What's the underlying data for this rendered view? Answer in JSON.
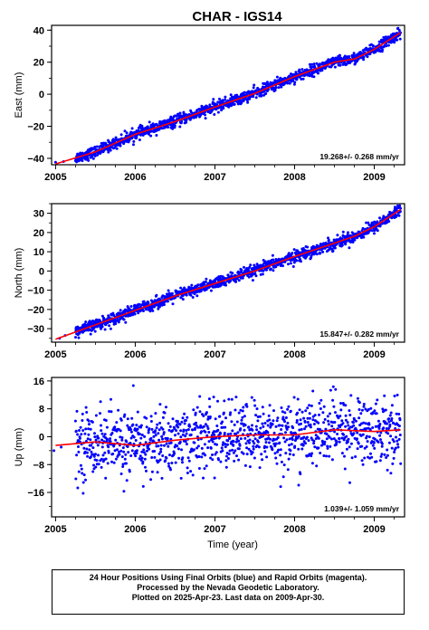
{
  "title": "CHAR - IGS14",
  "x_axis_label": "Time (year)",
  "x_ticks": [
    "2005",
    "2006",
    "2007",
    "2008",
    "2009"
  ],
  "colors": {
    "points": "#0000ff",
    "trend": "#ff0000",
    "axes": "#000000"
  },
  "footer": {
    "line1": "24 Hour Positions Using Final Orbits (blue) and Rapid Orbits (magenta).",
    "line2": "Processed by the Nevada Geodetic Laboratory.",
    "line3": "Plotted on 2025-Apr-23. Last data on 2009-Apr-30."
  },
  "chart_data": [
    {
      "type": "scatter",
      "ylabel": "East (mm)",
      "rate_label": "19.268+/- 0.268 mm/yr",
      "xlim": [
        2004.95,
        2009.38
      ],
      "ylim": [
        -44,
        43
      ],
      "yticks": [
        -40,
        -20,
        0,
        20,
        40
      ],
      "grid": false,
      "data_start": 2005.25,
      "data_end": 2009.33,
      "points_per_year": 320,
      "noise_sd": 1.7,
      "early_points": [
        [
          2005.0,
          -42.5
        ],
        [
          2005.1,
          -42.0
        ]
      ],
      "trend": [
        [
          2005.0,
          -43.5
        ],
        [
          2005.5,
          -36.0
        ],
        [
          2006.0,
          -25.0
        ],
        [
          2006.5,
          -17.0
        ],
        [
          2007.0,
          -8.0
        ],
        [
          2007.5,
          0.5
        ],
        [
          2008.0,
          11.0
        ],
        [
          2008.5,
          20.0
        ],
        [
          2008.75,
          22.0
        ],
        [
          2009.0,
          28.0
        ],
        [
          2009.33,
          38.5
        ]
      ]
    },
    {
      "type": "scatter",
      "ylabel": "North (mm)",
      "rate_label": "15.847+/- 0.282 mm/yr",
      "xlim": [
        2004.95,
        2009.38
      ],
      "ylim": [
        -37,
        35
      ],
      "yticks": [
        -30,
        -20,
        -10,
        0,
        10,
        20,
        30
      ],
      "grid": false,
      "data_start": 2005.25,
      "data_end": 2009.33,
      "points_per_year": 320,
      "noise_sd": 1.5,
      "early_points": [
        [
          2005.05,
          -35.0
        ],
        [
          2005.12,
          -33.5
        ]
      ],
      "trend": [
        [
          2005.0,
          -35.5
        ],
        [
          2005.5,
          -28.0
        ],
        [
          2006.0,
          -20.5
        ],
        [
          2006.5,
          -13.0
        ],
        [
          2007.0,
          -6.5
        ],
        [
          2007.5,
          0.0
        ],
        [
          2008.0,
          7.5
        ],
        [
          2008.5,
          14.5
        ],
        [
          2008.75,
          18.0
        ],
        [
          2009.0,
          23.0
        ],
        [
          2009.33,
          32.0
        ]
      ]
    },
    {
      "type": "scatter",
      "ylabel": "Up (mm)",
      "rate_label": "1.039+/- 1.059 mm/yr",
      "xlim": [
        2004.95,
        2009.38
      ],
      "ylim": [
        -23,
        17
      ],
      "yticks": [
        -16,
        -8,
        0,
        8,
        16
      ],
      "grid": false,
      "data_start": 2005.25,
      "data_end": 2009.33,
      "points_per_year": 280,
      "noise_sd": 4.8,
      "early_points": [
        [
          2004.98,
          -4.0
        ],
        [
          2005.07,
          -3.0
        ]
      ],
      "trend": [
        [
          2005.0,
          -2.5
        ],
        [
          2005.5,
          -1.5
        ],
        [
          2006.0,
          -2.5
        ],
        [
          2006.5,
          -1.0
        ],
        [
          2007.0,
          0.0
        ],
        [
          2007.5,
          0.5
        ],
        [
          2008.0,
          0.5
        ],
        [
          2008.5,
          2.0
        ],
        [
          2009.0,
          1.5
        ],
        [
          2009.33,
          2.0
        ]
      ]
    }
  ]
}
